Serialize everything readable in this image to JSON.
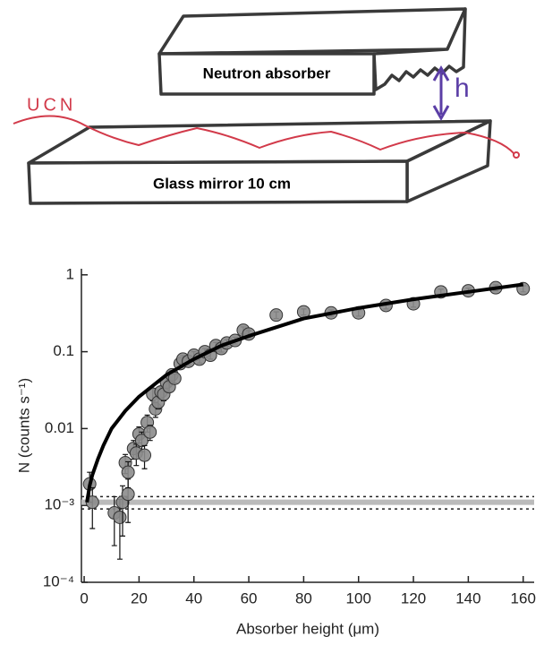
{
  "diagram": {
    "absorber_label": "Neutron absorber",
    "mirror_label": "Glass mirror 10 cm",
    "ucn_label": "UCN",
    "height_label": "h"
  },
  "chart_data": {
    "type": "scatter",
    "xlabel": "Absorber height  (μm)",
    "ylabel": "N (counts s⁻¹)",
    "x": [
      2,
      3,
      11,
      13,
      14,
      16,
      15,
      16,
      18,
      19,
      20,
      21,
      22,
      23,
      24,
      25,
      26,
      27,
      28,
      29,
      30,
      31,
      32,
      33,
      35,
      36,
      38,
      40,
      42,
      44,
      46,
      48,
      50,
      52,
      55,
      58,
      60,
      70,
      80,
      90,
      100,
      110,
      120,
      130,
      140,
      150,
      160
    ],
    "values": [
      0.0019,
      0.0011,
      0.0008,
      0.0007,
      0.0011,
      0.0014,
      0.0036,
      0.0027,
      0.0055,
      0.0048,
      0.0085,
      0.007,
      0.0045,
      0.012,
      0.009,
      0.028,
      0.018,
      0.022,
      0.03,
      0.028,
      0.04,
      0.035,
      0.05,
      0.045,
      0.07,
      0.08,
      0.075,
      0.09,
      0.08,
      0.1,
      0.09,
      0.12,
      0.11,
      0.13,
      0.14,
      0.19,
      0.17,
      0.3,
      0.33,
      0.32,
      0.32,
      0.4,
      0.42,
      0.6,
      0.62,
      0.68,
      0.66
    ],
    "errors": [
      0.0008,
      0.0006,
      0.0005,
      0.0005,
      0.0007,
      0.0008,
      0.001,
      0.001,
      0.0015,
      0.0015,
      0.002,
      0.002,
      0.0015,
      0.003,
      0.002,
      0.005,
      0.004,
      0.004,
      0.005,
      0.005,
      0.006,
      0.005,
      0.007,
      0.006,
      0.008,
      0.009,
      0.008,
      0.01,
      0.009,
      0.01,
      0.01,
      0.012,
      0.011,
      0.013,
      0.014,
      0.02,
      0.018,
      0.03,
      0.03,
      0.03,
      0.03,
      0.04,
      0.04,
      0.05,
      0.05,
      0.06,
      0.06
    ],
    "color": "#8c8c8c",
    "fit": {
      "type": "line",
      "color": "#000000",
      "x": [
        1,
        2,
        3,
        5,
        7,
        10,
        15,
        20,
        30,
        40,
        50,
        60,
        80,
        100,
        120,
        140,
        160
      ],
      "values": [
        0.0011,
        0.0018,
        0.0025,
        0.004,
        0.006,
        0.01,
        0.017,
        0.026,
        0.05,
        0.08,
        0.12,
        0.16,
        0.27,
        0.37,
        0.48,
        0.6,
        0.75
      ]
    },
    "background_band": {
      "value": 0.0011,
      "lower": 0.0009,
      "upper": 0.0013
    },
    "xlim": [
      -1,
      164
    ],
    "ylim": [
      0.0001,
      1.2
    ],
    "log_y": true,
    "xticks": [
      0,
      20,
      40,
      60,
      80,
      100,
      120,
      140,
      160
    ],
    "yticks": [
      1,
      0.1,
      0.01,
      {
        "value": 0.001,
        "label": "10⁻³"
      },
      {
        "value": 0.0001,
        "label": "10⁻⁴"
      }
    ]
  }
}
